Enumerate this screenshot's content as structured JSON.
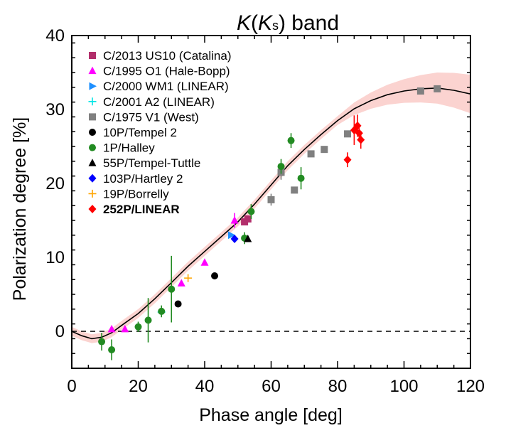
{
  "chart_data": {
    "type": "scatter",
    "title": "K(Ks) band",
    "title_parts": {
      "k": "K",
      "open": "(",
      "k2": "K",
      "sub": "s",
      "close": ") band"
    },
    "xlabel": "Phase angle [deg]",
    "ylabel": "Polarization degree [%]",
    "xlim": [
      0,
      120
    ],
    "ylim": [
      -5,
      40
    ],
    "x_ticks": [
      0,
      20,
      40,
      60,
      80,
      100,
      120
    ],
    "y_ticks": [
      0,
      10,
      20,
      30,
      40
    ],
    "grid": false,
    "legend_position": "top-left",
    "reference_line": {
      "y": 0,
      "style": "dashed"
    },
    "model_curve": [
      [
        0,
        0
      ],
      [
        3,
        -0.6
      ],
      [
        6,
        -1.0
      ],
      [
        9,
        -0.8
      ],
      [
        12,
        -0.2
      ],
      [
        15,
        0.8
      ],
      [
        20,
        2.4
      ],
      [
        25,
        4.4
      ],
      [
        30,
        6.6
      ],
      [
        35,
        8.8
      ],
      [
        40,
        10.8
      ],
      [
        45,
        12.8
      ],
      [
        50,
        14.8
      ],
      [
        55,
        17.2
      ],
      [
        60,
        19.8
      ],
      [
        65,
        22.4
      ],
      [
        70,
        24.6
      ],
      [
        75,
        26.6
      ],
      [
        80,
        28.5
      ],
      [
        85,
        30.1
      ],
      [
        90,
        31.2
      ],
      [
        95,
        32.0
      ],
      [
        100,
        32.5
      ],
      [
        105,
        32.8
      ],
      [
        110,
        32.9
      ],
      [
        115,
        32.6
      ],
      [
        120,
        32.1
      ]
    ],
    "series": [
      {
        "name": "C/2013 US10 (Catalina)",
        "marker": "square",
        "color": "#b22e6b",
        "points": [
          {
            "x": 52,
            "y": 14.8
          },
          {
            "x": 53,
            "y": 15.2
          }
        ]
      },
      {
        "name": "C/1995 O1 (Hale-Bopp)",
        "marker": "triangle",
        "color": "#ff00ff",
        "points": [
          {
            "x": 12,
            "y": 0.3
          },
          {
            "x": 16,
            "y": 0.3
          },
          {
            "x": 33,
            "y": 6.5
          },
          {
            "x": 40,
            "y": 9.3
          },
          {
            "x": 49,
            "y": 15.0,
            "err": 1.0
          }
        ]
      },
      {
        "name": "C/2000 WM1 (LINEAR)",
        "marker": "triangle-right",
        "color": "#1e90ff",
        "points": [
          {
            "x": 48,
            "y": 13.0
          }
        ]
      },
      {
        "name": "C/2001 A2 (LINEAR)",
        "marker": "plus",
        "color": "#00e5e5",
        "points": [
          {
            "x": 27,
            "y": 2.6
          }
        ]
      },
      {
        "name": "C/1975 V1 (West)",
        "marker": "square",
        "color": "#808080",
        "points": [
          {
            "x": 60,
            "y": 17.8,
            "err": 0.8
          },
          {
            "x": 63,
            "y": 21.5,
            "err": 1.0
          },
          {
            "x": 67,
            "y": 19.1
          },
          {
            "x": 72,
            "y": 24.0
          },
          {
            "x": 76,
            "y": 24.6
          },
          {
            "x": 83,
            "y": 26.7
          },
          {
            "x": 105,
            "y": 32.5
          },
          {
            "x": 110,
            "y": 32.8
          }
        ]
      },
      {
        "name": "10P/Tempel 2",
        "marker": "circle",
        "color": "#000000",
        "points": [
          {
            "x": 32,
            "y": 3.7
          },
          {
            "x": 43,
            "y": 7.5
          }
        ]
      },
      {
        "name": "1P/Halley",
        "marker": "circle",
        "color": "#228b22",
        "points": [
          {
            "x": 9,
            "y": -1.4,
            "err": 1.2
          },
          {
            "x": 12,
            "y": -2.5,
            "err": 1.4
          },
          {
            "x": 20,
            "y": 0.6,
            "err": 0.7
          },
          {
            "x": 23,
            "y": 1.5,
            "err": 3.0
          },
          {
            "x": 27,
            "y": 2.7,
            "err": 0.8
          },
          {
            "x": 30,
            "y": 5.7,
            "err": 4.5
          },
          {
            "x": 52,
            "y": 12.6,
            "err": 0.8
          },
          {
            "x": 54,
            "y": 16.2,
            "err": 1.0
          },
          {
            "x": 63,
            "y": 22.3,
            "err": 1.0
          },
          {
            "x": 66,
            "y": 25.8,
            "err": 1.0
          },
          {
            "x": 69,
            "y": 20.7,
            "err": 1.5
          }
        ]
      },
      {
        "name": "55P/Tempel-Tuttle",
        "marker": "triangle",
        "color": "#000000",
        "points": [
          {
            "x": 53,
            "y": 12.5
          }
        ]
      },
      {
        "name": "103P/Hartley 2",
        "marker": "diamond",
        "color": "#0000ff",
        "points": [
          {
            "x": 49,
            "y": 12.5
          }
        ]
      },
      {
        "name": "19P/Borrelly",
        "marker": "plus",
        "color": "#ffa500",
        "points": [
          {
            "x": 35,
            "y": 7.2
          }
        ]
      },
      {
        "name": "252P/LINEAR",
        "marker": "diamond",
        "color": "#ff0000",
        "bold": true,
        "points": [
          {
            "x": 83,
            "y": 23.2,
            "err": 1.0
          },
          {
            "x": 85,
            "y": 27.2,
            "err": 2.0
          },
          {
            "x": 86,
            "y": 27.8,
            "err": 1.5
          },
          {
            "x": 86.5,
            "y": 26.8,
            "err": 1.0
          },
          {
            "x": 87,
            "y": 25.9,
            "err": 1.2
          }
        ]
      }
    ]
  }
}
